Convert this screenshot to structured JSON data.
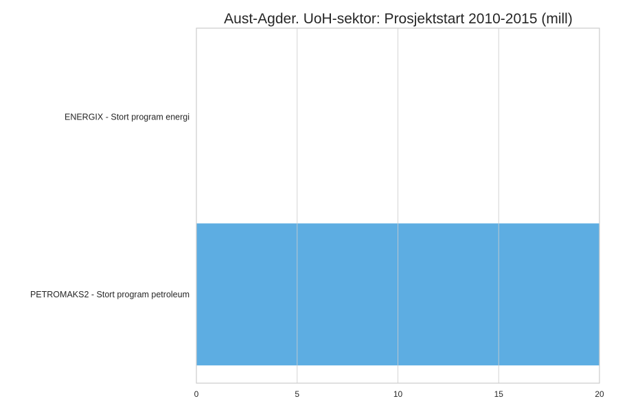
{
  "chart_data": {
    "type": "bar",
    "orientation": "horizontal",
    "title": "Aust-Agder. UoH-sektor: Prosjektstart 2010-2015 (mill)",
    "categories": [
      "ENERGIX - Stort program energi",
      "PETROMAKS2 - Stort program petroleum"
    ],
    "values": [
      0,
      20
    ],
    "xlabel": "",
    "ylabel": "",
    "xlim": [
      0,
      20
    ],
    "xticks": [
      "0",
      "5",
      "10",
      "15",
      "20"
    ],
    "grid": true,
    "legend": "none",
    "bar_color": "#5DADE2",
    "grid_color": "#CCCCCC"
  }
}
